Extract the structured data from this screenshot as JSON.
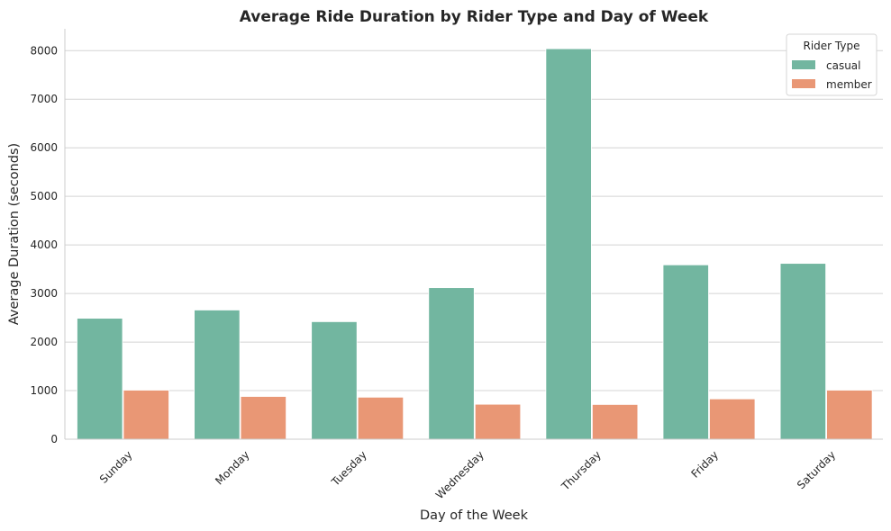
{
  "chart_data": {
    "type": "bar",
    "title": "Average Ride Duration by Rider Type and Day of Week",
    "xlabel": "Day of the Week",
    "ylabel": "Average Duration (seconds)",
    "categories": [
      "Sunday",
      "Monday",
      "Tuesday",
      "Wednesday",
      "Thursday",
      "Friday",
      "Saturday"
    ],
    "series": [
      {
        "name": "casual",
        "color": "#72b6a0",
        "values": [
          2490,
          2660,
          2420,
          3120,
          8040,
          3590,
          3620
        ]
      },
      {
        "name": "member",
        "color": "#e99775",
        "values": [
          1010,
          880,
          865,
          720,
          715,
          830,
          1010
        ]
      }
    ],
    "ylim": [
      0,
      8450
    ],
    "yticks": [
      0,
      1000,
      2000,
      3000,
      4000,
      5000,
      6000,
      7000,
      8000
    ],
    "grid": "horizontal",
    "legend": {
      "title": "Rider Type",
      "position": "top-right"
    }
  }
}
